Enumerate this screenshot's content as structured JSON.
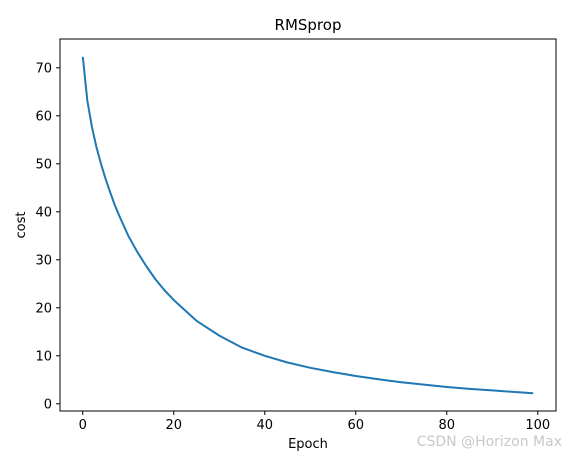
{
  "chart_data": {
    "type": "line",
    "title": "RMSprop",
    "xlabel": "Epoch",
    "ylabel": "cost",
    "xlim": [
      -5,
      104
    ],
    "ylim": [
      -1.5,
      76
    ],
    "xticks": [
      0,
      20,
      40,
      60,
      80,
      100
    ],
    "yticks": [
      0,
      10,
      20,
      30,
      40,
      50,
      60,
      70
    ],
    "grid": false,
    "series": [
      {
        "color": "#1f77b4",
        "x": [
          0,
          1,
          2,
          3,
          4,
          5,
          6,
          7,
          8,
          10,
          12,
          14,
          16,
          18,
          20,
          25,
          30,
          35,
          40,
          45,
          50,
          55,
          60,
          65,
          70,
          75,
          80,
          85,
          90,
          95,
          99
        ],
        "y": [
          72.3,
          63.2,
          57.7,
          53.5,
          50.0,
          46.9,
          44.1,
          41.5,
          39.2,
          35.0,
          31.6,
          28.6,
          25.9,
          23.6,
          21.6,
          17.3,
          14.2,
          11.7,
          10.0,
          8.6,
          7.5,
          6.6,
          5.8,
          5.1,
          4.5,
          4.0,
          3.5,
          3.1,
          2.8,
          2.45,
          2.2
        ]
      }
    ]
  },
  "watermark": "CSDN @Horizon Max"
}
